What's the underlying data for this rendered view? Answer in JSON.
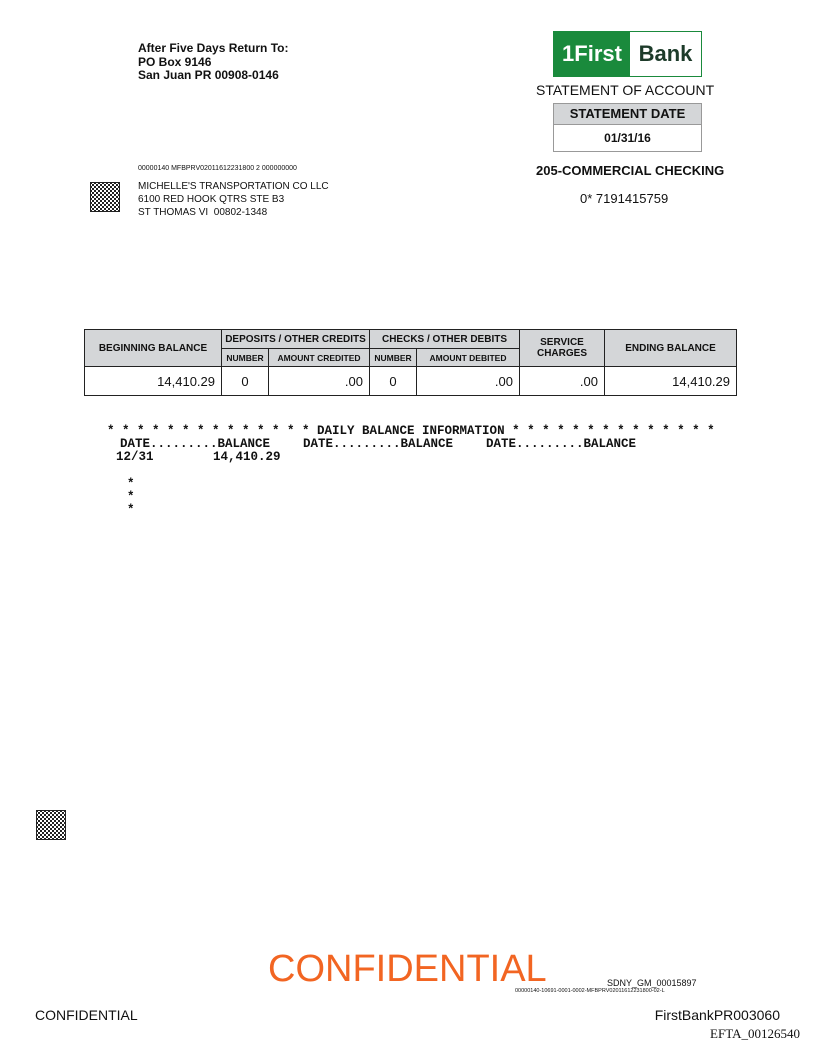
{
  "return_address": {
    "heading": "After Five Days Return To:",
    "line1": "PO Box 9146",
    "line2": "San Juan PR 00908-0146"
  },
  "logo": {
    "number": "1",
    "first": "First",
    "bank": "Bank"
  },
  "statement": {
    "title": "STATEMENT OF ACCOUNT",
    "date_label": "STATEMENT DATE",
    "date": "01/31/16",
    "account_type": "205-COMMERCIAL CHECKING",
    "account_number": "0* 7191415759"
  },
  "mail_code": "00000140 MFBPRV02011612231800 2 000000000",
  "addressee": {
    "name": "MICHELLE'S TRANSPORTATION CO LLC",
    "line1": "6100 RED HOOK QTRS STE B3",
    "line2": "ST THOMAS VI  00802-1348"
  },
  "summary_table": {
    "headers": {
      "beginning_balance": "BEGINNING BALANCE",
      "deposits": "DEPOSITS / OTHER CREDITS",
      "deposits_number": "NUMBER",
      "amount_credited": "AMOUNT CREDITED",
      "checks": "CHECKS / OTHER DEBITS",
      "checks_number": "NUMBER",
      "amount_debited": "AMOUNT DEBITED",
      "service_charges": "SERVICE CHARGES",
      "ending_balance": "ENDING BALANCE"
    },
    "row": [
      "14,410.29",
      "0",
      ".00",
      "0",
      ".00",
      ".00",
      "14,410.29"
    ]
  },
  "daily_balance": {
    "heading": "* * * * * * * * * * * * * * DAILY BALANCE INFORMATION * * * * * * * * * * * * * *",
    "columns": [
      "DATE.........BALANCE",
      "DATE.........BALANCE",
      "DATE.........BALANCE"
    ],
    "rows": [
      [
        "12/31",
        "14,410.29"
      ]
    ],
    "stars": [
      "*",
      "*",
      "*"
    ]
  },
  "footer": {
    "confidential_stamp": "CONFIDENTIAL",
    "bates": "SDNY_GM_00015897",
    "doc_code": "00000140-10691-0001-0002-MFBPRV02011612231800-02-L",
    "left_label": "CONFIDENTIAL",
    "page_id": "FirstBankPR003060",
    "efta": "EFTA_00126540"
  }
}
